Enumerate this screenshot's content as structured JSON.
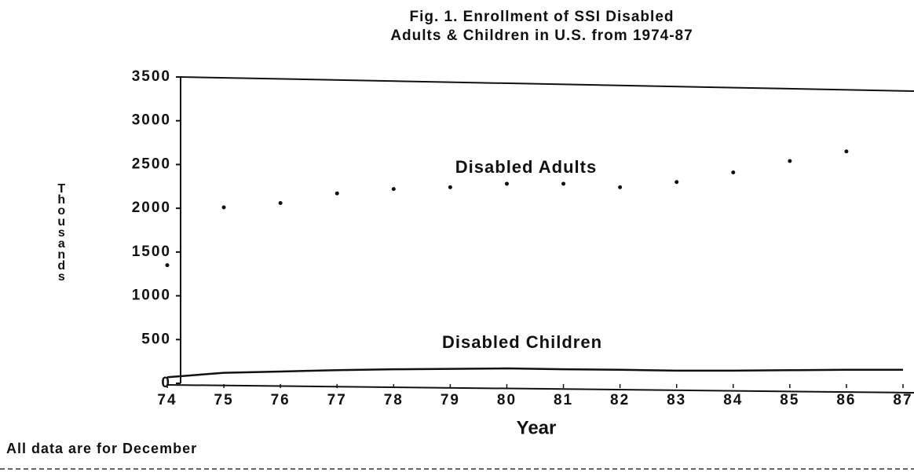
{
  "chart_data": {
    "type": "line",
    "title": [
      "Fig. 1.  Enrollment of SSI Disabled",
      "Adults & Children in U.S. from 1974-87"
    ],
    "y_label": "Thousands",
    "x_label": "Year",
    "note": "All data are for December",
    "x": [
      74,
      75,
      76,
      77,
      78,
      79,
      80,
      81,
      82,
      83,
      84,
      85,
      86,
      87
    ],
    "xlim": [
      74,
      87
    ],
    "xticks": [
      74,
      75,
      76,
      77,
      78,
      79,
      80,
      81,
      82,
      83,
      84,
      85,
      86,
      87
    ],
    "ylim": [
      0,
      3500
    ],
    "yticks": [
      0,
      500,
      1000,
      1500,
      2000,
      2500,
      3000,
      3500
    ],
    "grid": false,
    "series": [
      {
        "name": "Disabled Adults",
        "color": "#111111",
        "style": "dots",
        "values": [
          1350,
          2010,
          2060,
          2170,
          2220,
          2240,
          2280,
          2280,
          2240,
          2300,
          2410,
          2540,
          2650,
          null
        ]
      },
      {
        "name": "Disabled Children",
        "color": "#111111",
        "style": "line",
        "values": [
          70,
          120,
          135,
          150,
          160,
          165,
          170,
          160,
          155,
          145,
          145,
          150,
          155,
          155
        ]
      }
    ]
  }
}
